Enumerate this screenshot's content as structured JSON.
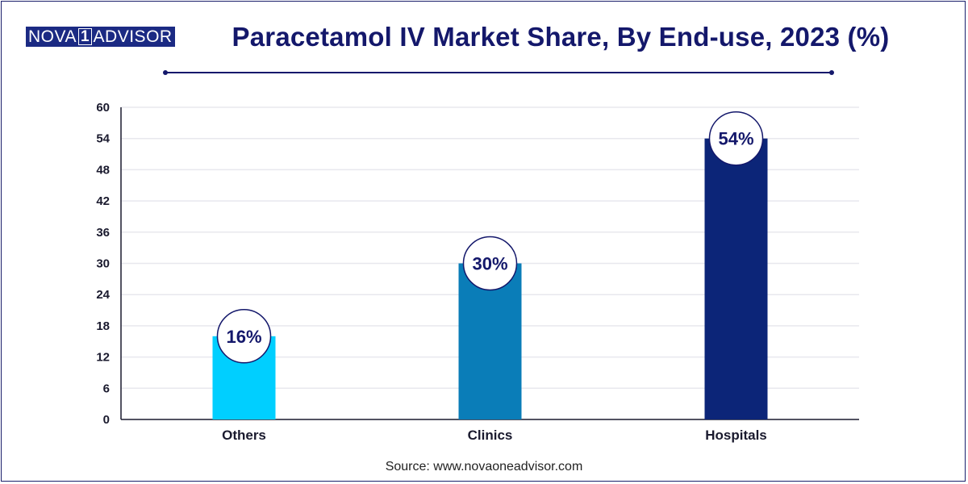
{
  "header": {
    "logo_left": "NOVA",
    "logo_mid": "1",
    "logo_right": "ADVISOR",
    "title": "Paracetamol IV Market Share, By End-use, 2023 (%)"
  },
  "footer": {
    "source": "Source: www.novaoneadvisor.com"
  },
  "colors": {
    "title": "#14186b",
    "axis": "#1a1a2e",
    "grid": "#e8e8ee",
    "bars": [
      "#00cfff",
      "#0a7db8",
      "#0c2578"
    ]
  },
  "chart_data": {
    "type": "bar",
    "title": "Paracetamol IV Market Share, By End-use, 2023 (%)",
    "xlabel": "",
    "ylabel": "",
    "ylim": [
      0,
      60
    ],
    "yticks": [
      0,
      6,
      12,
      18,
      24,
      30,
      36,
      42,
      48,
      54,
      60
    ],
    "categories": [
      "Others",
      "Clinics",
      "Hospitals"
    ],
    "values": [
      16,
      30,
      54
    ],
    "data_labels": [
      "16%",
      "30%",
      "54%"
    ],
    "grid": true,
    "legend": "none"
  }
}
